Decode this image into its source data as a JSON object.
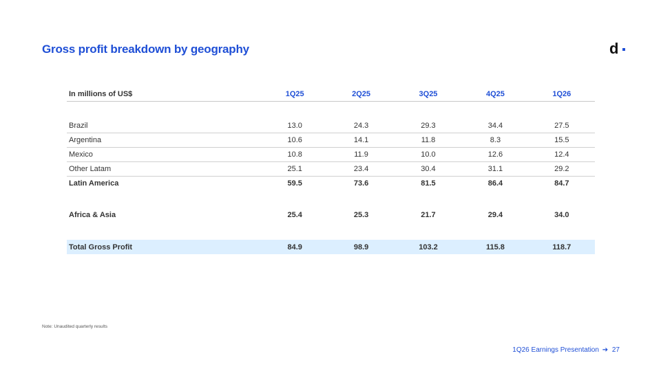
{
  "title": "Gross profit breakdown by geography",
  "logo": {
    "letter": "d",
    "icon": "dlocal-logo"
  },
  "table": {
    "header_label": "In millions of US$",
    "columns": [
      "1Q25",
      "2Q25",
      "3Q25",
      "4Q25",
      "1Q26"
    ],
    "rows": [
      {
        "label": "Brazil",
        "values": [
          "13.0",
          "24.3",
          "29.3",
          "34.4",
          "27.5"
        ]
      },
      {
        "label": "Argentina",
        "values": [
          "10.6",
          "14.1",
          "11.8",
          "8.3",
          "15.5"
        ]
      },
      {
        "label": "Mexico",
        "values": [
          "10.8",
          "11.9",
          "10.0",
          "12.6",
          "12.4"
        ]
      },
      {
        "label": "Other Latam",
        "values": [
          "25.1",
          "23.4",
          "30.4",
          "31.1",
          "29.2"
        ]
      },
      {
        "label": "Latin America",
        "values": [
          "59.5",
          "73.6",
          "81.5",
          "86.4",
          "84.7"
        ]
      },
      {
        "label": "Africa & Asia",
        "values": [
          "25.4",
          "25.3",
          "21.7",
          "29.4",
          "34.0"
        ]
      },
      {
        "label": "Total Gross Profit",
        "values": [
          "84.9",
          "98.9",
          "103.2",
          "115.8",
          "118.7"
        ]
      }
    ]
  },
  "note": "Note: Unaudited quarterly results",
  "footer": {
    "text": "1Q26 Earnings Presentation",
    "arrow": "➔",
    "page": "27"
  },
  "colors": {
    "accent": "#1f4fd6",
    "total_row_bg": "#dcefff"
  }
}
